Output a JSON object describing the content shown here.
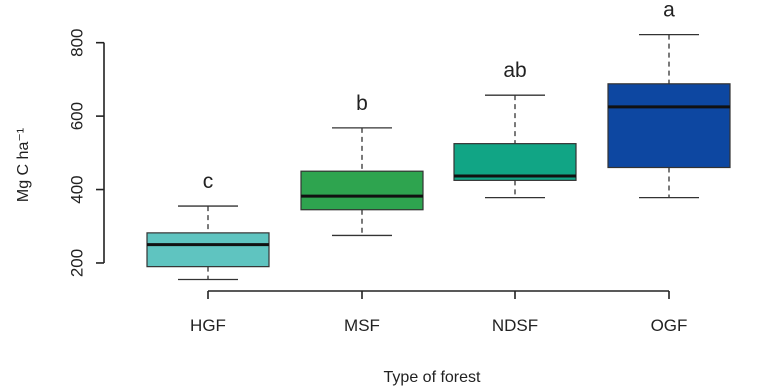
{
  "chart_data": {
    "type": "boxplot",
    "xlabel": "Type of forest",
    "ylabel": "Mg C ha⁻¹",
    "ylim": [
      140,
      840
    ],
    "yticks": [
      200,
      400,
      600,
      800
    ],
    "categories": [
      "HGF",
      "MSF",
      "NDSF",
      "OGF"
    ],
    "boxes": [
      {
        "category": "HGF",
        "whisker_low": 155,
        "q1": 190,
        "median": 250,
        "q3": 282,
        "whisker_high": 355,
        "significance": "c",
        "color": "#5fc4c0"
      },
      {
        "category": "MSF",
        "whisker_low": 275,
        "q1": 345,
        "median": 382,
        "q3": 450,
        "whisker_high": 568,
        "significance": "b",
        "color": "#2ea44f"
      },
      {
        "category": "NDSF",
        "whisker_low": 378,
        "q1": 425,
        "median": 437,
        "q3": 525,
        "whisker_high": 657,
        "significance": "ab",
        "color": "#11a585"
      },
      {
        "category": "OGF",
        "whisker_low": 378,
        "q1": 460,
        "median": 625,
        "q3": 688,
        "whisker_high": 822,
        "significance": "a",
        "color": "#0d47a1"
      }
    ],
    "grid": false,
    "legend": "none"
  }
}
